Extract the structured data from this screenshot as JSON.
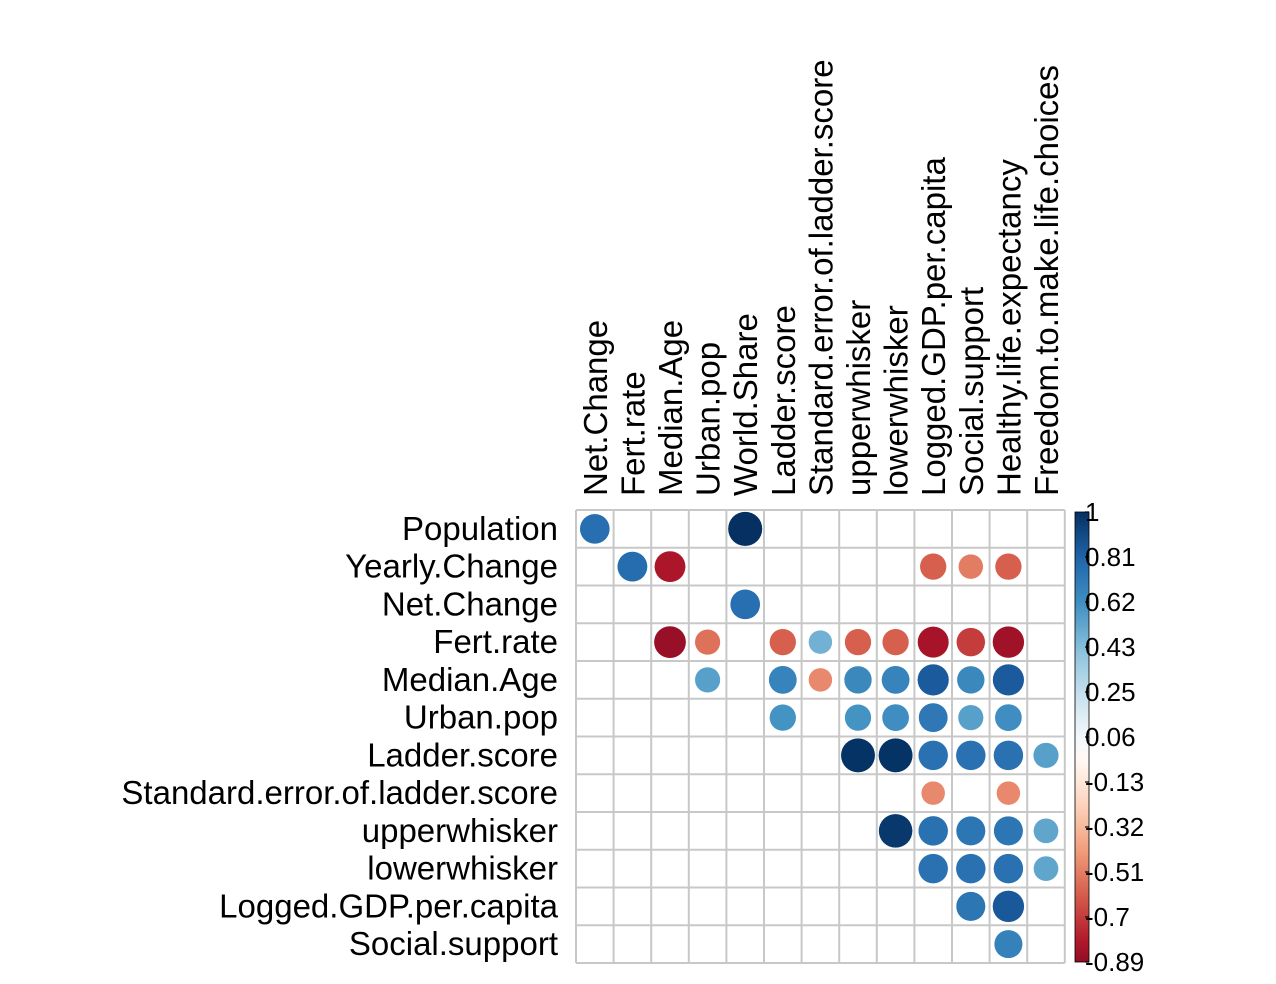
{
  "chart_data": {
    "type": "heatmap",
    "style": "circle",
    "layout": "upper-triangle",
    "rows": [
      "Population",
      "Yearly.Change",
      "Net.Change",
      "Fert.rate",
      "Median.Age",
      "Urban.pop",
      "Ladder.score",
      "Standard.error.of.ladder.score",
      "upperwhisker",
      "lowerwhisker",
      "Logged.GDP.per.capita",
      "Social.support"
    ],
    "columns": [
      "Net.Change",
      "Fert.rate",
      "Median.Age",
      "Urban.pop",
      "World.Share",
      "Ladder.score",
      "Standard.error.of.ladder.score",
      "upperwhisker",
      "lowerwhisker",
      "Logged.GDP.per.capita",
      "Social.support",
      "Healthy.life.expectancy",
      "Freedom.to.make.life.choices"
    ],
    "cells": [
      {
        "row": "Population",
        "col": "Net.Change",
        "value": 0.76
      },
      {
        "row": "Population",
        "col": "World.Share",
        "value": 1.0
      },
      {
        "row": "Yearly.Change",
        "col": "Fert.rate",
        "value": 0.77
      },
      {
        "row": "Yearly.Change",
        "col": "Median.Age",
        "value": -0.82
      },
      {
        "row": "Yearly.Change",
        "col": "Logged.GDP.per.capita",
        "value": -0.6
      },
      {
        "row": "Yearly.Change",
        "col": "Social.support",
        "value": -0.52
      },
      {
        "row": "Yearly.Change",
        "col": "Healthy.life.expectancy",
        "value": -0.6
      },
      {
        "row": "Net.Change",
        "col": "World.Share",
        "value": 0.76
      },
      {
        "row": "Fert.rate",
        "col": "Median.Age",
        "value": -0.87
      },
      {
        "row": "Fert.rate",
        "col": "Urban.pop",
        "value": -0.55
      },
      {
        "row": "Fert.rate",
        "col": "Ladder.score",
        "value": -0.6
      },
      {
        "row": "Fert.rate",
        "col": "Standard.error.of.ladder.score",
        "value": 0.48
      },
      {
        "row": "Fert.rate",
        "col": "upperwhisker",
        "value": -0.6
      },
      {
        "row": "Fert.rate",
        "col": "lowerwhisker",
        "value": -0.6
      },
      {
        "row": "Fert.rate",
        "col": "Logged.GDP.per.capita",
        "value": -0.83
      },
      {
        "row": "Fert.rate",
        "col": "Social.support",
        "value": -0.7
      },
      {
        "row": "Fert.rate",
        "col": "Healthy.life.expectancy",
        "value": -0.85
      },
      {
        "row": "Median.Age",
        "col": "Urban.pop",
        "value": 0.55
      },
      {
        "row": "Median.Age",
        "col": "Ladder.score",
        "value": 0.67
      },
      {
        "row": "Median.Age",
        "col": "Standard.error.of.ladder.score",
        "value": -0.48
      },
      {
        "row": "Median.Age",
        "col": "upperwhisker",
        "value": 0.65
      },
      {
        "row": "Median.Age",
        "col": "lowerwhisker",
        "value": 0.67
      },
      {
        "row": "Median.Age",
        "col": "Logged.GDP.per.capita",
        "value": 0.84
      },
      {
        "row": "Median.Age",
        "col": "Social.support",
        "value": 0.65
      },
      {
        "row": "Median.Age",
        "col": "Healthy.life.expectancy",
        "value": 0.84
      },
      {
        "row": "Urban.pop",
        "col": "Ladder.score",
        "value": 0.6
      },
      {
        "row": "Urban.pop",
        "col": "upperwhisker",
        "value": 0.6
      },
      {
        "row": "Urban.pop",
        "col": "lowerwhisker",
        "value": 0.62
      },
      {
        "row": "Urban.pop",
        "col": "Logged.GDP.per.capita",
        "value": 0.72
      },
      {
        "row": "Urban.pop",
        "col": "Social.support",
        "value": 0.55
      },
      {
        "row": "Urban.pop",
        "col": "Healthy.life.expectancy",
        "value": 0.62
      },
      {
        "row": "Ladder.score",
        "col": "upperwhisker",
        "value": 0.99
      },
      {
        "row": "Ladder.score",
        "col": "lowerwhisker",
        "value": 0.99
      },
      {
        "row": "Ladder.score",
        "col": "Logged.GDP.per.capita",
        "value": 0.75
      },
      {
        "row": "Ladder.score",
        "col": "Social.support",
        "value": 0.75
      },
      {
        "row": "Ladder.score",
        "col": "Healthy.life.expectancy",
        "value": 0.75
      },
      {
        "row": "Ladder.score",
        "col": "Freedom.to.make.life.choices",
        "value": 0.55
      },
      {
        "row": "Standard.error.of.ladder.score",
        "col": "Logged.GDP.per.capita",
        "value": -0.48
      },
      {
        "row": "Standard.error.of.ladder.score",
        "col": "Healthy.life.expectancy",
        "value": -0.48
      },
      {
        "row": "upperwhisker",
        "col": "lowerwhisker",
        "value": 0.97
      },
      {
        "row": "upperwhisker",
        "col": "Logged.GDP.per.capita",
        "value": 0.75
      },
      {
        "row": "upperwhisker",
        "col": "Social.support",
        "value": 0.73
      },
      {
        "row": "upperwhisker",
        "col": "Healthy.life.expectancy",
        "value": 0.73
      },
      {
        "row": "upperwhisker",
        "col": "Freedom.to.make.life.choices",
        "value": 0.53
      },
      {
        "row": "lowerwhisker",
        "col": "Logged.GDP.per.capita",
        "value": 0.75
      },
      {
        "row": "lowerwhisker",
        "col": "Social.support",
        "value": 0.75
      },
      {
        "row": "lowerwhisker",
        "col": "Healthy.life.expectancy",
        "value": 0.75
      },
      {
        "row": "lowerwhisker",
        "col": "Freedom.to.make.life.choices",
        "value": 0.53
      },
      {
        "row": "Logged.GDP.per.capita",
        "col": "Social.support",
        "value": 0.73
      },
      {
        "row": "Logged.GDP.per.capita",
        "col": "Healthy.life.expectancy",
        "value": 0.85
      },
      {
        "row": "Social.support",
        "col": "Healthy.life.expectancy",
        "value": 0.68
      }
    ],
    "colorbar": {
      "ticks": [
        "1",
        "0.81",
        "0.62",
        "0.43",
        "0.25",
        "0.06",
        "-0.13",
        "-0.32",
        "-0.51",
        "-0.7",
        "-0.89"
      ],
      "range": [
        -0.89,
        1
      ]
    },
    "colors": {
      "negative_strong": "#67001F",
      "negative": "#B2182B",
      "negative_mid": "#D6604D",
      "negative_light": "#F4A582",
      "negative_pale": "#FDDBC7",
      "neutral": "#FFFFFF",
      "positive_pale": "#D1E5F0",
      "positive_light": "#92C5DE",
      "positive_mid": "#4393C3",
      "positive": "#2166AC",
      "positive_strong": "#053061",
      "grid": "#C8C8C8"
    }
  }
}
